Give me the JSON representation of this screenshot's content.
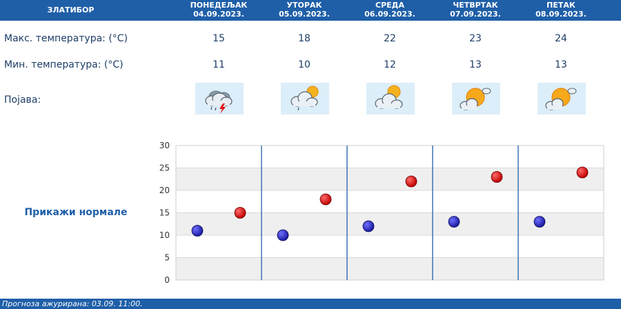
{
  "header": {
    "location": "ЗЛАТИБОР",
    "days": [
      {
        "name": "ПОНЕДЕЉАК",
        "date": "04.09.2023."
      },
      {
        "name": "УТОРАК",
        "date": "05.09.2023."
      },
      {
        "name": "СРЕДА",
        "date": "06.09.2023."
      },
      {
        "name": "ЧЕТВРТАК",
        "date": "07.09.2023."
      },
      {
        "name": "ПЕТАК",
        "date": "08.09.2023."
      }
    ]
  },
  "rows": {
    "max_label": "Макс. температура: (°C)",
    "min_label": "Мин. температура: (°C)",
    "phenomenon_label": "Појава:"
  },
  "max_temps": [
    "15",
    "18",
    "22",
    "23",
    "24"
  ],
  "min_temps": [
    "11",
    "10",
    "12",
    "13",
    "13"
  ],
  "icons": [
    "thunderstorm-rain-icon",
    "partly-cloudy-rain-icon",
    "partly-cloudy-icon",
    "mostly-sunny-icon",
    "mostly-sunny-icon"
  ],
  "normals_link": "Прикажи нормале",
  "footer": {
    "updated": "Прогноза ажурирана:  03.09.  11:00."
  },
  "colors": {
    "header": "#1f5fa8",
    "max_point": "#c00000",
    "min_point": "#1a1aa0",
    "divider": "#1f5fa8"
  },
  "chart_data": {
    "type": "scatter",
    "categories": [
      "04.09.2023.",
      "05.09.2023.",
      "06.09.2023.",
      "07.09.2023.",
      "08.09.2023."
    ],
    "series": [
      {
        "values": [
          11,
          10,
          12,
          13,
          13
        ]
      },
      {
        "values": [
          15,
          18,
          22,
          23,
          24
        ]
      }
    ],
    "ylim": [
      0,
      30
    ],
    "yticks": [
      "0",
      "5",
      "10",
      "15",
      "20",
      "25",
      "30"
    ],
    "grid": true,
    "alternating_bands": true
  }
}
